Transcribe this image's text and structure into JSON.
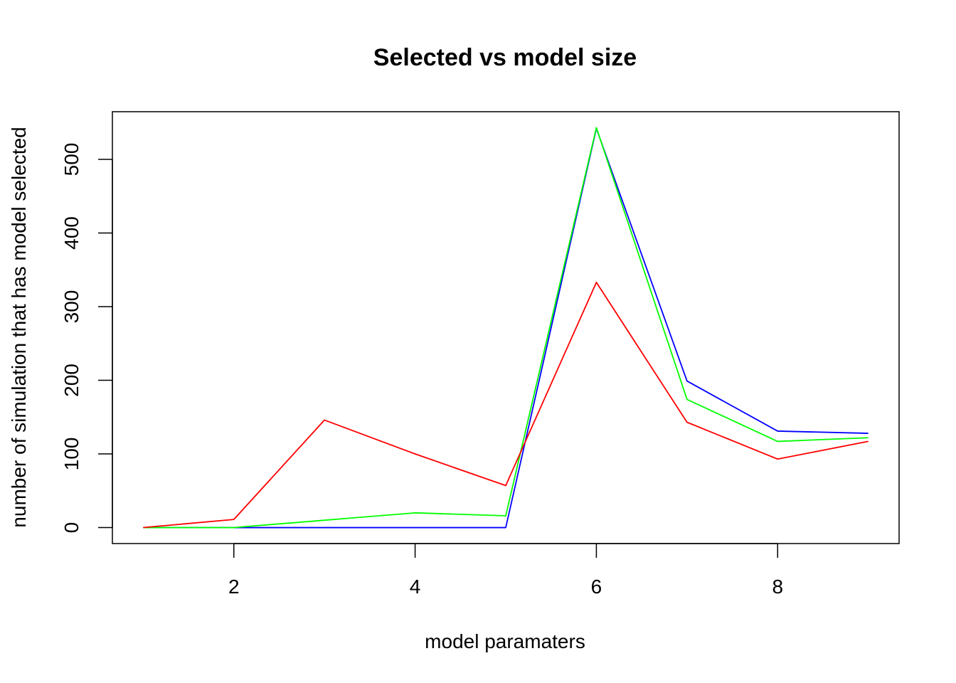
{
  "chart_data": {
    "type": "line",
    "title": "Selected vs model size",
    "xlabel": "model paramaters",
    "ylabel": "number of simulation that has model selected",
    "x": [
      1,
      2,
      3,
      4,
      5,
      6,
      7,
      8,
      9
    ],
    "xlim": [
      0.66,
      9.34
    ],
    "ylim": [
      -21.7,
      564.7
    ],
    "xticks": [
      2,
      4,
      6,
      8
    ],
    "yticks": [
      0,
      100,
      200,
      300,
      400,
      500
    ],
    "grid": false,
    "series": [
      {
        "color": "#0000ff",
        "values": [
          0,
          0,
          0,
          0,
          0,
          542,
          199,
          131,
          128
        ]
      },
      {
        "color": "#00ff00",
        "values": [
          0,
          0,
          10,
          20,
          16,
          543,
          174,
          117,
          122
        ]
      },
      {
        "color": "#ff0000",
        "values": [
          0,
          11,
          146,
          100,
          57,
          333,
          143,
          93,
          117
        ]
      }
    ]
  }
}
